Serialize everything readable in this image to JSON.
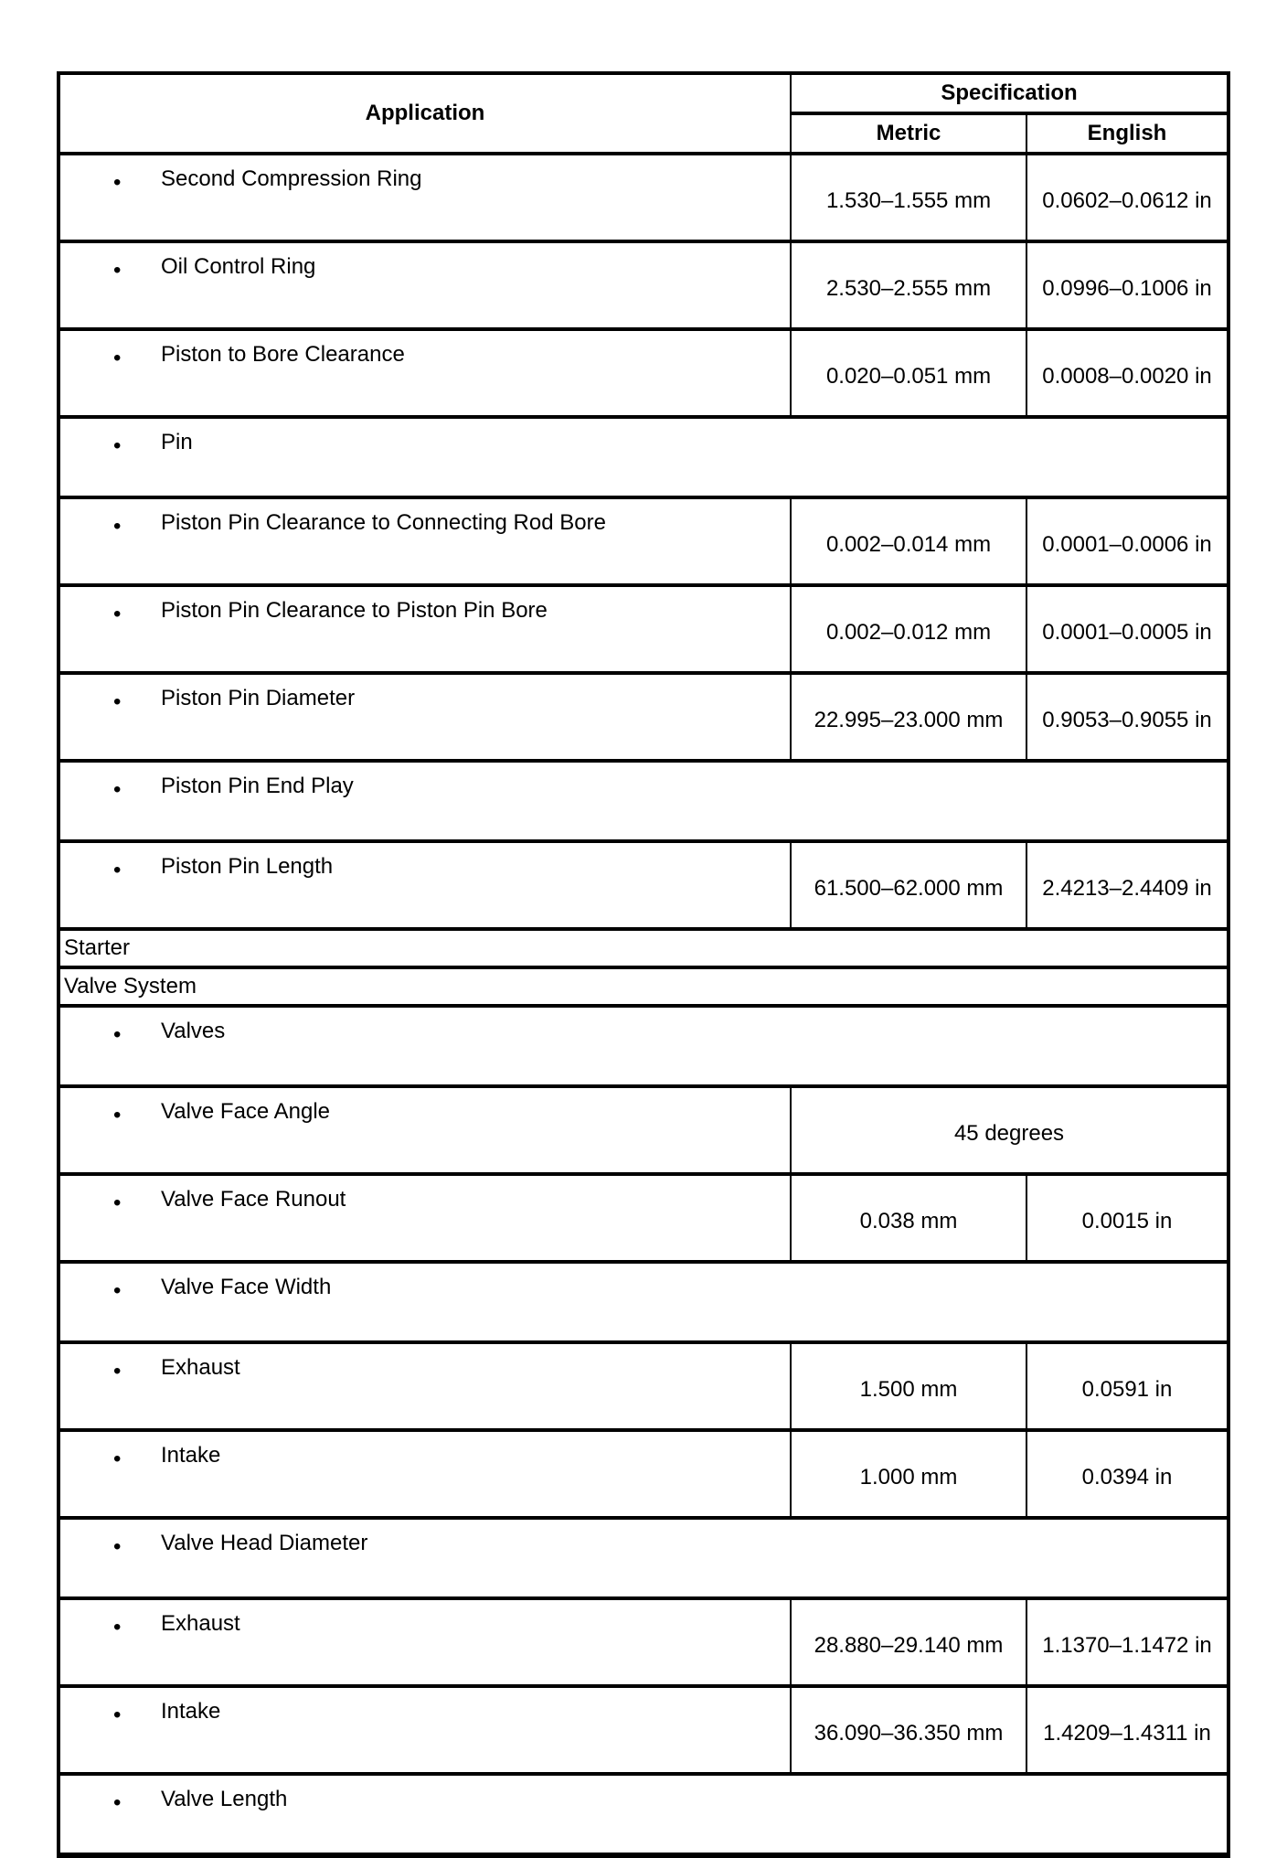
{
  "header": {
    "application": "Application",
    "specification": "Specification",
    "metric": "Metric",
    "english": "English"
  },
  "rows": [
    {
      "type": "item",
      "label": "Second Compression Ring",
      "metric": "1.530–1.555 mm",
      "english": "0.0602–0.0612 in"
    },
    {
      "type": "item",
      "label": "Oil Control Ring",
      "metric": "2.530–2.555 mm",
      "english": "0.0996–0.1006 in"
    },
    {
      "type": "item",
      "label": "Piston to Bore Clearance",
      "metric": "0.020–0.051 mm",
      "english": "0.0008–0.0020 in"
    },
    {
      "type": "heading",
      "label": "Pin"
    },
    {
      "type": "item",
      "label": "Piston Pin Clearance to Connecting Rod Bore",
      "metric": "0.002–0.014 mm",
      "english": "0.0001–0.0006 in"
    },
    {
      "type": "item",
      "label": "Piston Pin Clearance to Piston Pin Bore",
      "metric": "0.002–0.012 mm",
      "english": "0.0001–0.0005 in"
    },
    {
      "type": "item",
      "label": "Piston Pin Diameter",
      "metric": "22.995–23.000 mm",
      "english": "0.9053–0.9055 in"
    },
    {
      "type": "heading",
      "label": "Piston Pin End Play"
    },
    {
      "type": "item",
      "label": "Piston Pin Length",
      "metric": "61.500–62.000 mm",
      "english": "2.4213–2.4409 in"
    },
    {
      "type": "section",
      "label": "Starter"
    },
    {
      "type": "section",
      "label": "Valve System"
    },
    {
      "type": "heading",
      "label": "Valves"
    },
    {
      "type": "merged",
      "label": "Valve Face Angle",
      "value": "45 degrees"
    },
    {
      "type": "item",
      "label": "Valve Face Runout",
      "metric": "0.038 mm",
      "english": "0.0015 in"
    },
    {
      "type": "heading",
      "label": "Valve Face Width"
    },
    {
      "type": "item",
      "label": "Exhaust",
      "metric": "1.500 mm",
      "english": "0.0591 in"
    },
    {
      "type": "item",
      "label": "Intake",
      "metric": "1.000 mm",
      "english": "0.0394 in"
    },
    {
      "type": "heading",
      "label": "Valve Head Diameter"
    },
    {
      "type": "item",
      "label": "Exhaust",
      "metric": "28.880–29.140 mm",
      "english": "1.1370–1.1472 in"
    },
    {
      "type": "item",
      "label": "Intake",
      "metric": "36.090–36.350 mm",
      "english": "1.4209–1.4311 in"
    },
    {
      "type": "heading",
      "label": "Valve Length"
    }
  ],
  "bullet": "•"
}
